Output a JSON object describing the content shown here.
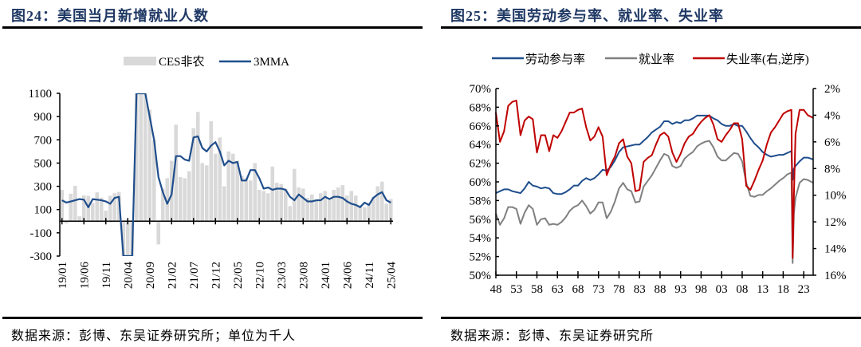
{
  "left_panel": {
    "title": "图24：美国当月新增就业人数",
    "source": "数据来源：彭博、东吴证券研究所；单位为千人"
  },
  "right_panel": {
    "title": "图25：美国劳动参与率、就业率、失业率",
    "source": "数据来源：彭博、东吴证券研究所"
  },
  "chart_data": [
    {
      "type": "bar+line",
      "title": "美国当月新增就业人数",
      "ylim": [
        -300,
        1100
      ],
      "yticks": [
        "1100",
        "900",
        "700",
        "500",
        "300",
        "100",
        "-100",
        "-300"
      ],
      "ytick_values": [
        1100,
        900,
        700,
        500,
        300,
        100,
        -100,
        -300
      ],
      "xtick_labels": [
        "19/01",
        "19/06",
        "19/11",
        "20/04",
        "20/09",
        "21/02",
        "21/07",
        "21/12",
        "22/05",
        "22/10",
        "23/03",
        "23/08",
        "24/01",
        "24/06",
        "24/11",
        "25/04"
      ],
      "legend": [
        "CES非农",
        "3MMA"
      ],
      "legend_placement": "top",
      "colors": {
        "bars": "#d9d9d9",
        "line": "#1f4e8c"
      },
      "series": [
        {
          "name": "CES非农",
          "values": [
            269,
            -20,
            236,
            304,
            42,
            222,
            218,
            157,
            248,
            202,
            91,
            219,
            241,
            252,
            -300,
            -300,
            -300,
            1100,
            1100,
            1100,
            960,
            700,
            -200,
            280,
            370,
            520,
            830,
            380,
            370,
            430,
            800,
            940,
            500,
            480,
            860,
            580,
            720,
            300,
            600,
            580,
            520,
            390,
            370,
            350,
            500,
            270,
            260,
            240,
            470,
            330,
            320,
            280,
            130,
            450,
            290,
            280,
            200,
            230,
            180,
            240,
            260,
            180,
            270,
            290,
            310,
            220,
            260,
            220,
            140,
            120,
            150,
            210,
            300,
            340,
            150,
            190
          ],
          "note": "monthly values in thousands; clipped at axis limits"
        },
        {
          "name": "3MMA",
          "values": [
            180,
            160,
            170,
            180,
            190,
            185,
            120,
            190,
            185,
            180,
            170,
            150,
            200,
            210,
            -300,
            -300,
            -300,
            1100,
            1100,
            1100,
            900,
            700,
            380,
            250,
            150,
            230,
            560,
            560,
            530,
            520,
            720,
            730,
            630,
            600,
            650,
            680,
            600,
            480,
            520,
            500,
            510,
            350,
            350,
            440,
            440,
            370,
            280,
            290,
            270,
            280,
            280,
            270,
            210,
            180,
            230,
            200,
            170,
            170,
            180,
            180,
            210,
            190,
            210,
            210,
            200,
            170,
            150,
            140,
            120,
            160,
            140,
            200,
            230,
            250,
            180,
            160
          ]
        }
      ]
    },
    {
      "type": "line",
      "title": "美国劳动参与率、就业率、失业率",
      "ylim_left": [
        50,
        70
      ],
      "ylim_right_inverted": [
        2,
        16
      ],
      "yticks_left": [
        "70%",
        "68%",
        "66%",
        "64%",
        "62%",
        "60%",
        "58%",
        "56%",
        "54%",
        "52%",
        "50%"
      ],
      "yticks_left_values": [
        70,
        68,
        66,
        64,
        62,
        60,
        58,
        56,
        54,
        52,
        50
      ],
      "yticks_right": [
        "2%",
        "4%",
        "6%",
        "8%",
        "10%",
        "12%",
        "14%",
        "16%"
      ],
      "yticks_right_values": [
        2,
        4,
        6,
        8,
        10,
        12,
        14,
        16
      ],
      "xtick_labels": [
        "48",
        "53",
        "58",
        "63",
        "68",
        "73",
        "78",
        "83",
        "88",
        "93",
        "98",
        "03",
        "08",
        "13",
        "18",
        "23"
      ],
      "xlim": [
        1948,
        2025.3
      ],
      "legend": [
        "劳动参与率",
        "就业率",
        "失业率(右,逆序)"
      ],
      "legend_placement": "top",
      "colors": {
        "lfpr": "#1f4e8c",
        "emp": "#808080",
        "unemp": "#c00000"
      },
      "x": [
        1948,
        1949,
        1950,
        1951,
        1952,
        1953,
        1954,
        1955,
        1956,
        1957,
        1958,
        1959,
        1960,
        1961,
        1962,
        1963,
        1964,
        1965,
        1966,
        1967,
        1968,
        1969,
        1970,
        1971,
        1972,
        1973,
        1974,
        1975,
        1976,
        1977,
        1978,
        1979,
        1980,
        1981,
        1982,
        1983,
        1984,
        1985,
        1986,
        1987,
        1988,
        1989,
        1990,
        1991,
        1992,
        1993,
        1994,
        1995,
        1996,
        1997,
        1998,
        1999,
        2000,
        2001,
        2002,
        2003,
        2004,
        2005,
        2006,
        2007,
        2008,
        2009,
        2010,
        2011,
        2012,
        2013,
        2014,
        2015,
        2016,
        2017,
        2018,
        2019,
        2020,
        2020.3,
        2020.6,
        2021,
        2022,
        2023,
        2024,
        2025.3
      ],
      "series": [
        {
          "name": "劳动参与率",
          "axis": "left",
          "values": [
            58.8,
            59.0,
            59.2,
            59.2,
            59.0,
            58.9,
            58.8,
            59.3,
            60.0,
            59.6,
            59.5,
            59.3,
            59.4,
            59.3,
            58.8,
            58.7,
            58.7,
            58.9,
            59.2,
            59.6,
            59.6,
            60.1,
            60.4,
            60.2,
            60.4,
            60.8,
            61.3,
            61.2,
            61.6,
            62.3,
            63.2,
            63.7,
            63.8,
            63.9,
            64.0,
            64.0,
            64.4,
            64.8,
            65.3,
            65.6,
            65.9,
            66.5,
            66.5,
            66.2,
            66.4,
            66.3,
            66.6,
            66.6,
            66.8,
            67.1,
            67.1,
            67.1,
            67.1,
            66.8,
            66.6,
            66.2,
            66.0,
            66.0,
            66.2,
            66.0,
            66.0,
            65.4,
            64.7,
            64.1,
            63.7,
            63.2,
            62.9,
            62.7,
            62.8,
            62.9,
            62.9,
            63.1,
            63.3,
            60.2,
            61.4,
            61.7,
            62.2,
            62.6,
            62.6,
            62.4
          ]
        },
        {
          "name": "就业率",
          "axis": "left",
          "values": [
            56.6,
            55.4,
            56.1,
            57.3,
            57.3,
            57.1,
            55.5,
            56.7,
            57.5,
            57.1,
            55.4,
            56.0,
            56.1,
            55.4,
            55.5,
            55.4,
            55.7,
            56.2,
            56.9,
            57.3,
            57.5,
            58.0,
            57.4,
            56.6,
            57.0,
            57.8,
            57.8,
            56.1,
            56.8,
            57.9,
            59.3,
            59.9,
            59.2,
            59.0,
            57.8,
            57.9,
            59.5,
            60.1,
            60.7,
            61.5,
            62.3,
            63.0,
            62.8,
            61.7,
            61.5,
            61.7,
            62.5,
            62.9,
            63.2,
            63.8,
            64.1,
            64.3,
            64.4,
            63.7,
            62.7,
            62.3,
            62.3,
            62.7,
            63.1,
            63.0,
            62.2,
            59.9,
            58.5,
            58.4,
            58.6,
            58.6,
            59.0,
            59.3,
            59.7,
            60.1,
            60.4,
            60.8,
            61.0,
            51.3,
            56.6,
            58.3,
            59.9,
            60.3,
            60.2,
            59.9
          ]
        },
        {
          "name": "失业率(右,逆序)",
          "axis": "right",
          "values": [
            3.8,
            6.0,
            5.2,
            3.3,
            3.0,
            2.9,
            5.5,
            4.4,
            4.1,
            4.3,
            6.8,
            5.5,
            5.5,
            6.7,
            5.5,
            5.7,
            5.2,
            4.5,
            3.8,
            3.8,
            3.6,
            3.5,
            4.9,
            5.9,
            5.6,
            4.9,
            5.6,
            8.5,
            7.7,
            7.1,
            6.1,
            5.8,
            7.1,
            7.6,
            9.7,
            9.6,
            7.5,
            7.2,
            7.0,
            6.2,
            5.5,
            5.3,
            5.6,
            6.8,
            7.5,
            6.9,
            6.1,
            5.6,
            5.4,
            4.9,
            4.5,
            4.2,
            4.0,
            4.7,
            5.8,
            6.0,
            5.5,
            5.1,
            4.6,
            4.6,
            5.8,
            9.3,
            9.6,
            8.9,
            8.1,
            7.4,
            6.2,
            5.3,
            4.9,
            4.4,
            3.9,
            3.7,
            3.6,
            14.7,
            10.2,
            5.4,
            3.6,
            3.6,
            4.0,
            4.2
          ]
        }
      ]
    }
  ]
}
